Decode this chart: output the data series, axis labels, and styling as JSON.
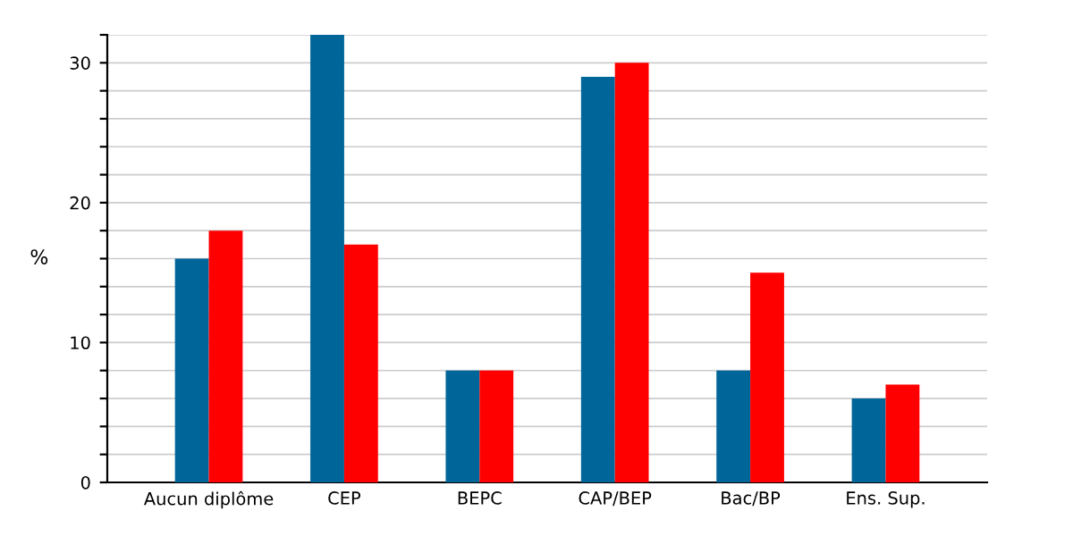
{
  "chart_data": {
    "type": "bar",
    "ylabel": "%",
    "categories": [
      "Aucun diplôme",
      "CEP",
      "BEPC",
      "CAP/BEP",
      "Bac/BP",
      "Ens. Sup."
    ],
    "series": [
      {
        "color": "#006699",
        "values": [
          16,
          32,
          8,
          29,
          8,
          6
        ]
      },
      {
        "color": "#ff0000",
        "values": [
          18,
          17,
          8,
          30,
          15,
          7
        ]
      }
    ],
    "ylim": [
      0,
      32
    ],
    "yticks": [
      0,
      {
        "value": 2,
        "label": null
      },
      {
        "value": 4,
        "label": null
      },
      {
        "value": 6,
        "label": null
      },
      {
        "value": 8,
        "label": null
      },
      10,
      {
        "value": 12,
        "label": null
      },
      {
        "value": 14,
        "label": null
      },
      {
        "value": 16,
        "label": null
      },
      {
        "value": 18,
        "label": null
      },
      20,
      {
        "value": 22,
        "label": null
      },
      {
        "value": 24,
        "label": null
      },
      {
        "value": 26,
        "label": null
      },
      {
        "value": 28,
        "label": null
      },
      30,
      {
        "value": 32,
        "label": null
      }
    ],
    "grid": "y",
    "legend": false
  }
}
